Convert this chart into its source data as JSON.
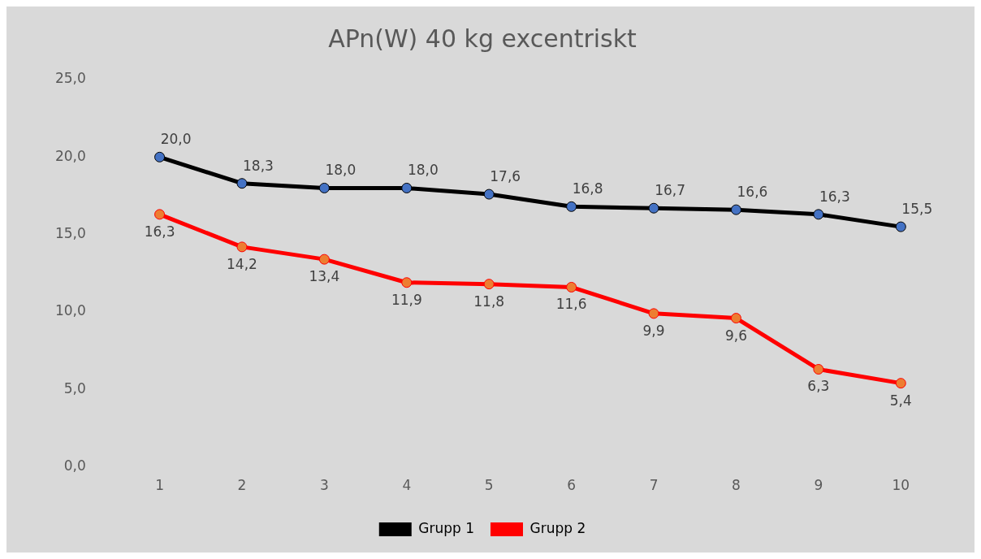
{
  "chart_data": {
    "type": "line",
    "title": "APn(W) 40 kg excentriskt",
    "categories": [
      "1",
      "2",
      "3",
      "4",
      "5",
      "6",
      "7",
      "8",
      "9",
      "10"
    ],
    "series": [
      {
        "name": "Grupp 1",
        "color": "#000000",
        "colors": [
          "#4472c4",
          "#4472c4",
          "#4472c4",
          "#4472c4",
          "#4472c4",
          "#4472c4",
          "#4472c4",
          "#4472c4",
          "#4472c4",
          "#4472c4"
        ],
        "values": [
          20.0,
          18.3,
          18.0,
          18.0,
          17.6,
          16.8,
          16.7,
          16.6,
          16.3,
          15.5
        ],
        "value_labels": [
          "20,0",
          "18,3",
          "18,0",
          "18,0",
          "17,6",
          "16,8",
          "16,7",
          "16,6",
          "16,3",
          "15,5"
        ]
      },
      {
        "name": "Grupp 2",
        "color": "#ff0000",
        "colors": [
          "#ed7d31",
          "#ed7d31",
          "#ed7d31",
          "#ed7d31",
          "#ed7d31",
          "#ed7d31",
          "#ed7d31",
          "#ed7d31",
          "#ed7d31",
          "#ed7d31"
        ],
        "values": [
          16.3,
          14.2,
          13.4,
          11.9,
          11.8,
          11.6,
          9.9,
          9.6,
          6.3,
          5.4
        ],
        "value_labels": [
          "16,3",
          "14,2",
          "13,4",
          "11,9",
          "11,8",
          "11,6",
          "9,9",
          "9,6",
          "6,3",
          "5,4"
        ]
      }
    ],
    "ylim": [
      0,
      25
    ],
    "yticks": [
      {
        "value": 0,
        "label": "0,0"
      },
      {
        "value": 5,
        "label": "5,0"
      },
      {
        "value": 10,
        "label": "10,0"
      },
      {
        "value": 15,
        "label": "15,0"
      },
      {
        "value": 20,
        "label": "20,0"
      },
      {
        "value": 25,
        "label": "25,0"
      }
    ],
    "grid": false,
    "legend": "bottom",
    "marker": "circle",
    "line_style": "solid"
  }
}
